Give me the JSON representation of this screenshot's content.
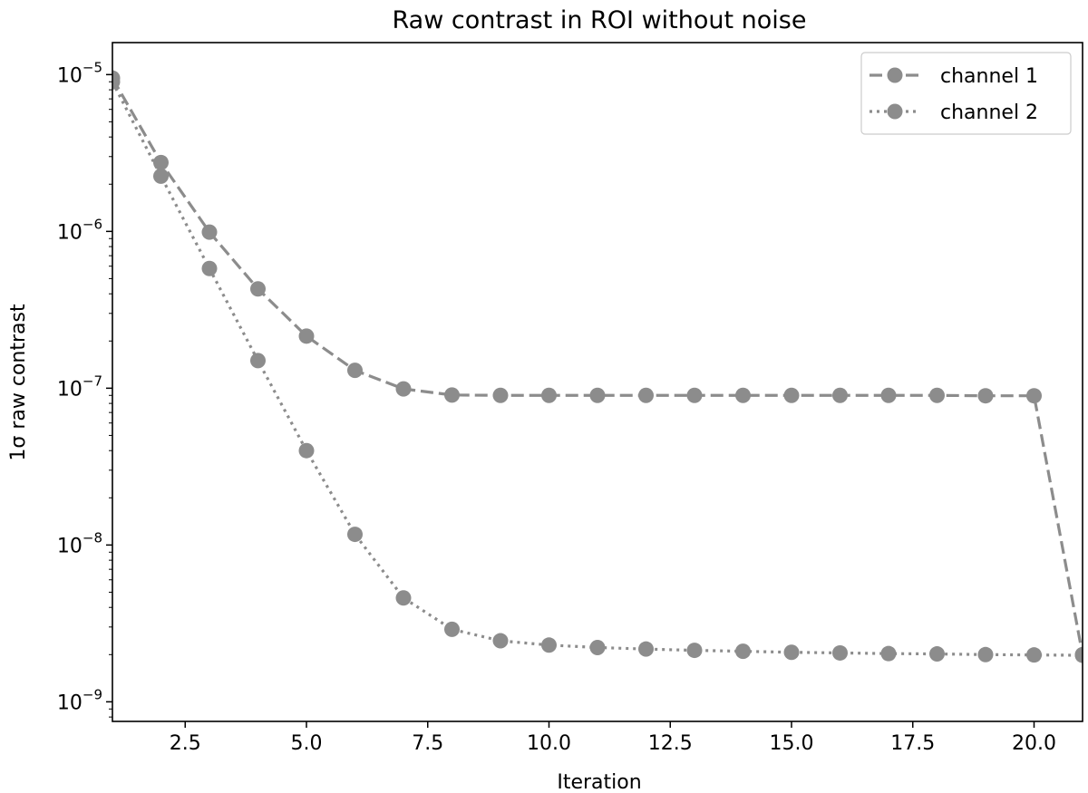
{
  "chart_data": {
    "type": "line",
    "title": "Raw contrast in ROI without noise",
    "xlabel": "Iteration",
    "ylabel": "1σ raw contrast",
    "yscale": "log",
    "xlim": [
      1,
      21
    ],
    "ylim": [
      7.5e-10,
      1.6e-05
    ],
    "xticks": [
      2.5,
      5.0,
      7.5,
      10.0,
      12.5,
      15.0,
      17.5,
      20.0
    ],
    "xtick_labels": [
      "2.5",
      "5.0",
      "7.5",
      "10.0",
      "12.5",
      "15.0",
      "17.5",
      "20.0"
    ],
    "yticks": [
      {
        "value": 1e-05,
        "base": "10",
        "exp": "−5"
      },
      {
        "value": 1e-06,
        "base": "10",
        "exp": "−6"
      },
      {
        "value": 1e-07,
        "base": "10",
        "exp": "−7"
      },
      {
        "value": 1e-08,
        "base": "10",
        "exp": "−8"
      },
      {
        "value": 1e-09,
        "base": "10",
        "exp": "−9"
      }
    ],
    "grid": false,
    "legend_position": "top-right",
    "x": [
      1,
      2,
      3,
      4,
      5,
      6,
      7,
      8,
      9,
      10,
      11,
      12,
      13,
      14,
      15,
      16,
      17,
      18,
      19,
      20,
      21
    ],
    "series": [
      {
        "name": "channel 1",
        "style": "dashed",
        "color": "#8c8c8c",
        "values": [
          9.5e-06,
          2.75e-06,
          9.9e-07,
          4.3e-07,
          2.15e-07,
          1.3e-07,
          9.9e-08,
          9.05e-08,
          9e-08,
          9e-08,
          9e-08,
          9e-08,
          9e-08,
          9e-08,
          9e-08,
          9e-08,
          9e-08,
          9e-08,
          8.95e-08,
          8.95e-08,
          2e-09
        ]
      },
      {
        "name": "channel 2",
        "style": "dotted",
        "color": "#8c8c8c",
        "values": [
          9e-06,
          2.25e-06,
          5.8e-07,
          1.5e-07,
          4e-08,
          1.17e-08,
          4.6e-09,
          2.9e-09,
          2.45e-09,
          2.3e-09,
          2.22e-09,
          2.17e-09,
          2.13e-09,
          2.1e-09,
          2.07e-09,
          2.05e-09,
          2.03e-09,
          2.02e-09,
          2e-09,
          1.99e-09,
          1.98e-09
        ]
      }
    ]
  }
}
